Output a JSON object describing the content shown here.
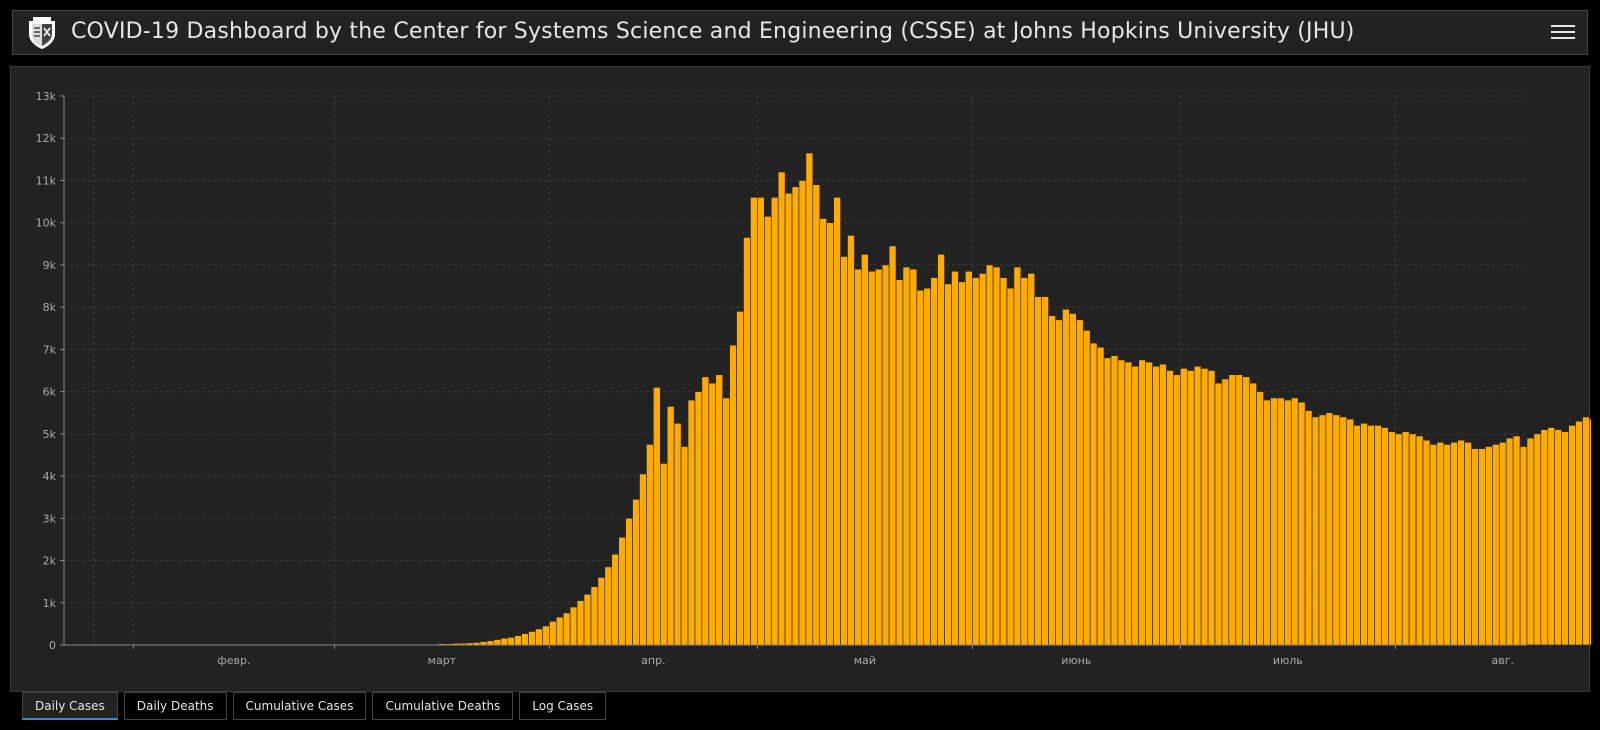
{
  "header": {
    "title": "COVID-19 Dashboard by the Center for Systems Science and Engineering (CSSE) at Johns Hopkins University (JHU)",
    "logo_icon": "jhu-shield-icon",
    "menu_icon": "hamburger-menu-icon"
  },
  "tabs": [
    {
      "label": "Daily Cases",
      "active": true
    },
    {
      "label": "Daily Deaths",
      "active": false
    },
    {
      "label": "Cumulative Cases",
      "active": false
    },
    {
      "label": "Cumulative Deaths",
      "active": false
    },
    {
      "label": "Log Cases",
      "active": false
    }
  ],
  "colors": {
    "bar": "#ffab00",
    "background": "#222222",
    "grid": "#3d3d3d",
    "active_tab_underline": "#3a8ad6"
  },
  "chart_data": {
    "type": "bar",
    "title": "",
    "xlabel": "",
    "ylabel": "",
    "ylim": [
      0,
      13000
    ],
    "y_ticks": [
      {
        "value": 0,
        "label": "0"
      },
      {
        "value": 1000,
        "label": "1k"
      },
      {
        "value": 2000,
        "label": "2k"
      },
      {
        "value": 3000,
        "label": "3k"
      },
      {
        "value": 4000,
        "label": "4k"
      },
      {
        "value": 5000,
        "label": "5k"
      },
      {
        "value": 6000,
        "label": "6k"
      },
      {
        "value": 7000,
        "label": "7k"
      },
      {
        "value": 8000,
        "label": "8k"
      },
      {
        "value": 9000,
        "label": "9k"
      },
      {
        "value": 10000,
        "label": "10k"
      },
      {
        "value": 11000,
        "label": "11k"
      },
      {
        "value": 12000,
        "label": "12k"
      },
      {
        "value": 13000,
        "label": "13k"
      }
    ],
    "x_range": [
      "2020-01-22",
      "2020-08-19"
    ],
    "x_ticks": [
      {
        "date": "2020-02-01",
        "label": "февр."
      },
      {
        "date": "2020-03-01",
        "label": "март"
      },
      {
        "date": "2020-04-01",
        "label": "апр."
      },
      {
        "date": "2020-05-01",
        "label": "май"
      },
      {
        "date": "2020-06-01",
        "label": "июнь"
      },
      {
        "date": "2020-07-01",
        "label": "июль"
      },
      {
        "date": "2020-08-01",
        "label": "авг."
      }
    ],
    "grid": true,
    "series": [
      {
        "values": [
          0,
          0,
          0,
          0,
          0,
          0,
          0,
          0,
          0,
          0,
          0,
          0,
          0,
          0,
          0,
          0,
          0,
          0,
          0,
          0,
          0,
          0,
          0,
          0,
          0,
          0,
          0,
          0,
          0,
          0,
          0,
          0,
          0,
          0,
          0,
          0,
          0,
          0,
          0,
          0,
          0,
          0,
          0,
          0,
          0,
          0,
          0,
          0,
          0,
          0,
          0,
          10,
          20,
          20,
          30,
          30,
          40,
          40,
          50,
          60,
          80,
          100,
          130,
          160,
          180,
          220,
          270,
          320,
          380,
          450,
          560,
          660,
          760,
          900,
          1050,
          1200,
          1380,
          1600,
          1850,
          2150,
          2550,
          3000,
          3450,
          4050,
          4750,
          6100,
          4300,
          5650,
          5250,
          4700,
          5800,
          6000,
          6350,
          6200,
          6400,
          5850,
          7100,
          7900,
          9650,
          10600,
          10600,
          10150,
          10600,
          11200,
          10700,
          10850,
          11000,
          11650,
          10900,
          10100,
          10000,
          10600,
          9200,
          9700,
          8900,
          9250,
          8850,
          8900,
          9000,
          9450,
          8650,
          8950,
          8900,
          8400,
          8450,
          8700,
          9250,
          8550,
          8850,
          8600,
          8850,
          8700,
          8800,
          9000,
          8950,
          8700,
          8450,
          8950,
          8700,
          8800,
          8250,
          8250,
          7800,
          7700,
          7950,
          7850,
          7700,
          7450,
          7150,
          7050,
          6800,
          6850,
          6750,
          6700,
          6600,
          6750,
          6700,
          6600,
          6650,
          6500,
          6400,
          6550,
          6500,
          6600,
          6550,
          6500,
          6200,
          6300,
          6400,
          6400,
          6350,
          6200,
          6000,
          5800,
          5850,
          5850,
          5800,
          5850,
          5750,
          5550,
          5400,
          5450,
          5500,
          5450,
          5400,
          5350,
          5200,
          5250,
          5200,
          5200,
          5150,
          5050,
          5000,
          5050,
          5000,
          4950,
          4850,
          4750,
          4800,
          4750,
          4800,
          4850,
          4800,
          4650,
          4650,
          4700,
          4750,
          4800,
          4900,
          4950,
          4700,
          4900,
          5000,
          5100,
          5150,
          5100,
          5050,
          5200,
          5300,
          5400,
          5350,
          5350,
          5400,
          5450
        ]
      }
    ]
  }
}
